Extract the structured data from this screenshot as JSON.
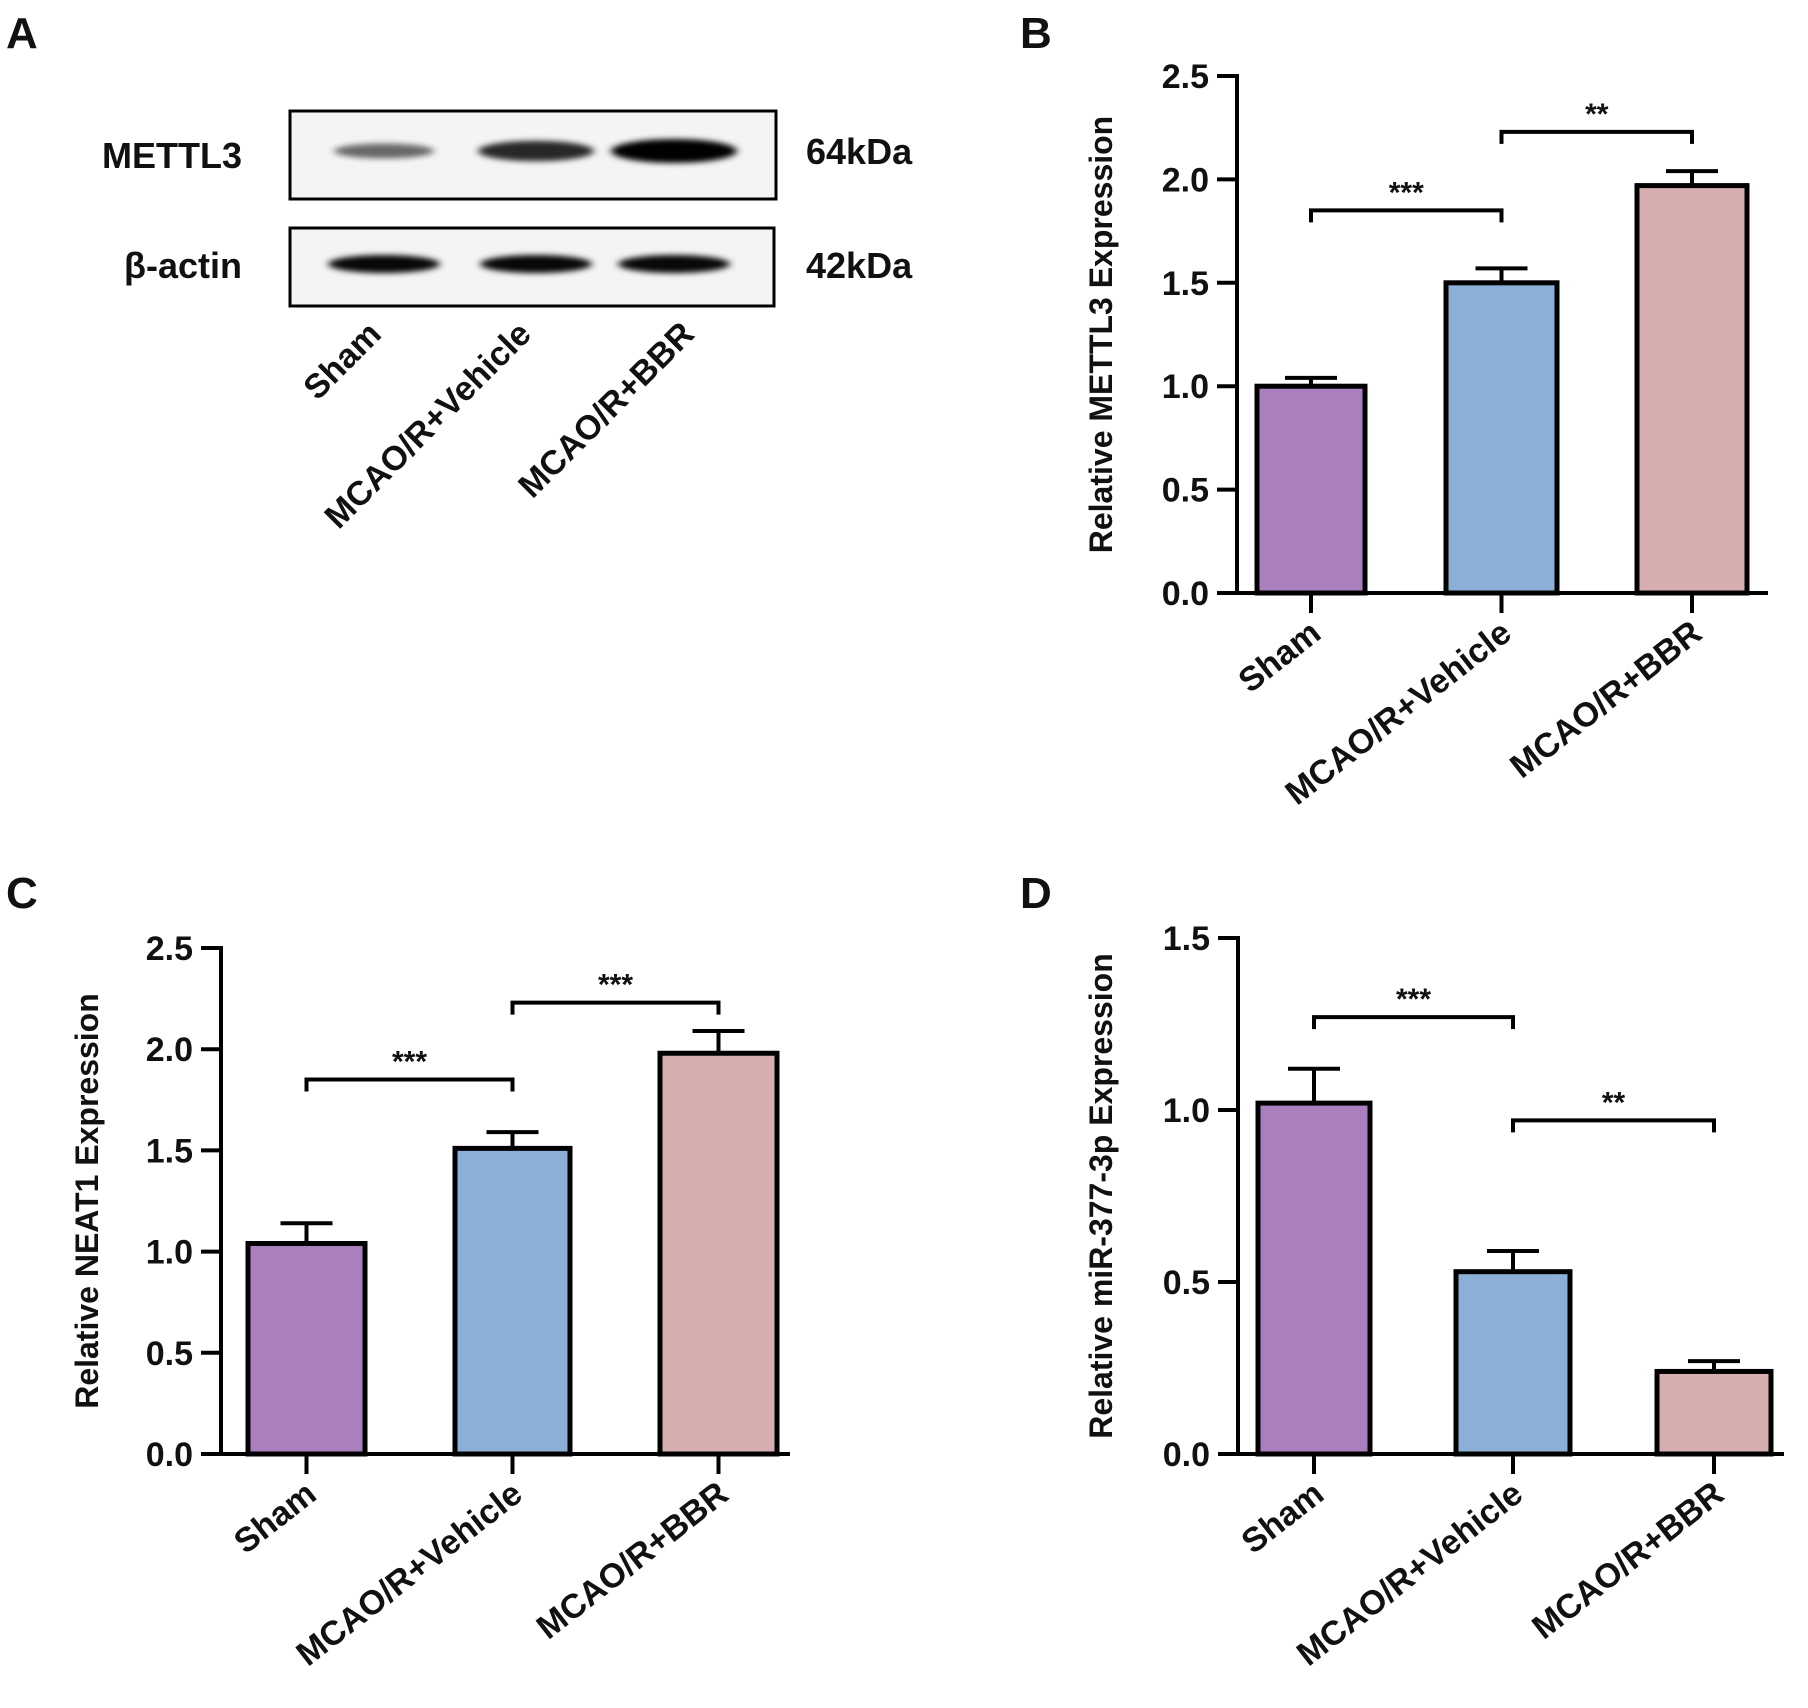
{
  "figure": {
    "panel_labels": [
      "A",
      "B",
      "C",
      "D"
    ]
  },
  "colors": {
    "sham": "#ab7fbe",
    "vehicle": "#8bafd6",
    "bbr": "#d7aeaf",
    "axis": "#000000"
  },
  "blot": {
    "rows": [
      {
        "protein": "METTL3",
        "size": "64kDa",
        "band_intensity": [
          0.35,
          0.75,
          1.0
        ]
      },
      {
        "protein": "β-actin",
        "size": "42kDa",
        "band_intensity": [
          0.95,
          0.95,
          0.95
        ]
      }
    ],
    "lanes": [
      "Sham",
      "MCAO/R+Vehicle",
      "MCAO/R+BBR"
    ]
  },
  "chart_data": [
    {
      "panel": "B",
      "type": "bar",
      "categories": [
        "Sham",
        "MCAO/R+Vehicle",
        "MCAO/R+BBR"
      ],
      "values": [
        1.0,
        1.5,
        1.97
      ],
      "errors": [
        0.04,
        0.07,
        0.07
      ],
      "ylabel": "Relative METTL3 Expression",
      "ylim": [
        0,
        2.5
      ],
      "yticks": [
        "0.0",
        "0.5",
        "1.0",
        "1.5",
        "2.0",
        "2.5"
      ],
      "significance": [
        {
          "from": 0,
          "to": 1,
          "y": 1.85,
          "label": "***"
        },
        {
          "from": 1,
          "to": 2,
          "y": 2.23,
          "label": "**"
        }
      ]
    },
    {
      "panel": "C",
      "type": "bar",
      "categories": [
        "Sham",
        "MCAO/R+Vehicle",
        "MCAO/R+BBR"
      ],
      "values": [
        1.04,
        1.51,
        1.98
      ],
      "errors": [
        0.1,
        0.08,
        0.11
      ],
      "ylabel": "Relative NEAT1 Expression",
      "ylim": [
        0,
        2.5
      ],
      "yticks": [
        "0.0",
        "0.5",
        "1.0",
        "1.5",
        "2.0",
        "2.5"
      ],
      "significance": [
        {
          "from": 0,
          "to": 1,
          "y": 1.85,
          "label": "***"
        },
        {
          "from": 1,
          "to": 2,
          "y": 2.23,
          "label": "***"
        }
      ]
    },
    {
      "panel": "D",
      "type": "bar",
      "categories": [
        "Sham",
        "MCAO/R+Vehicle",
        "MCAO/R+BBR"
      ],
      "values": [
        1.02,
        0.53,
        0.24
      ],
      "errors": [
        0.1,
        0.06,
        0.03
      ],
      "ylabel": "Relative miR-377-3p Expression",
      "ylim": [
        0,
        1.5
      ],
      "yticks": [
        "0.0",
        "0.5",
        "1.0",
        "1.5"
      ],
      "significance": [
        {
          "from": 0,
          "to": 1,
          "y": 1.27,
          "label": "***"
        },
        {
          "from": 1,
          "to": 2,
          "y": 0.97,
          "label": "**"
        }
      ]
    }
  ]
}
